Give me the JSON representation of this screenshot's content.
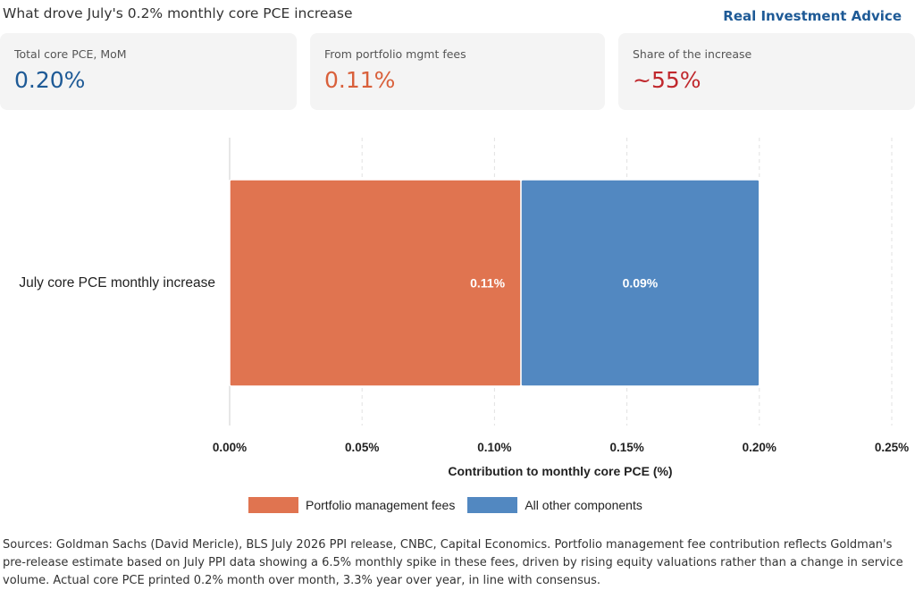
{
  "header": {
    "title": "What drove July's 0.2% monthly core PCE increase",
    "brand": "Real Investment Advice"
  },
  "cards": [
    {
      "label": "Total core PCE, MoM",
      "value": "0.20%",
      "color": "#1e5a96"
    },
    {
      "label": "From portfolio mgmt fees",
      "value": "0.11%",
      "color": "#d9603b"
    },
    {
      "label": "Share of the increase",
      "value": "~55%",
      "color": "#c0282d"
    }
  ],
  "chart_data": {
    "type": "bar",
    "orientation": "horizontal",
    "stacked": true,
    "categories": [
      "July core PCE monthly increase"
    ],
    "series": [
      {
        "name": "Portfolio management fees",
        "values": [
          0.11
        ],
        "label": "0.11%",
        "color": "#e07450"
      },
      {
        "name": "All other components",
        "values": [
          0.09
        ],
        "label": "0.09%",
        "color": "#5288c1"
      }
    ],
    "xlabel": "Contribution to monthly core PCE (%)",
    "xlim": [
      0,
      0.25
    ],
    "xticks": [
      "0.00%",
      "0.05%",
      "0.10%",
      "0.15%",
      "0.20%",
      "0.25%"
    ],
    "grid": true,
    "legend": "bottom"
  },
  "footer": {
    "sources": "Sources: Goldman Sachs (David Mericle), BLS July 2026 PPI release, CNBC, Capital Economics. Portfolio management fee contribution reflects Goldman's pre-release estimate based on July PPI data showing a 6.5% monthly spike in these fees, driven by rising equity valuations rather than a change in service volume. Actual core PCE printed 0.2% month over month, 3.3% year over year, in line with consensus."
  }
}
